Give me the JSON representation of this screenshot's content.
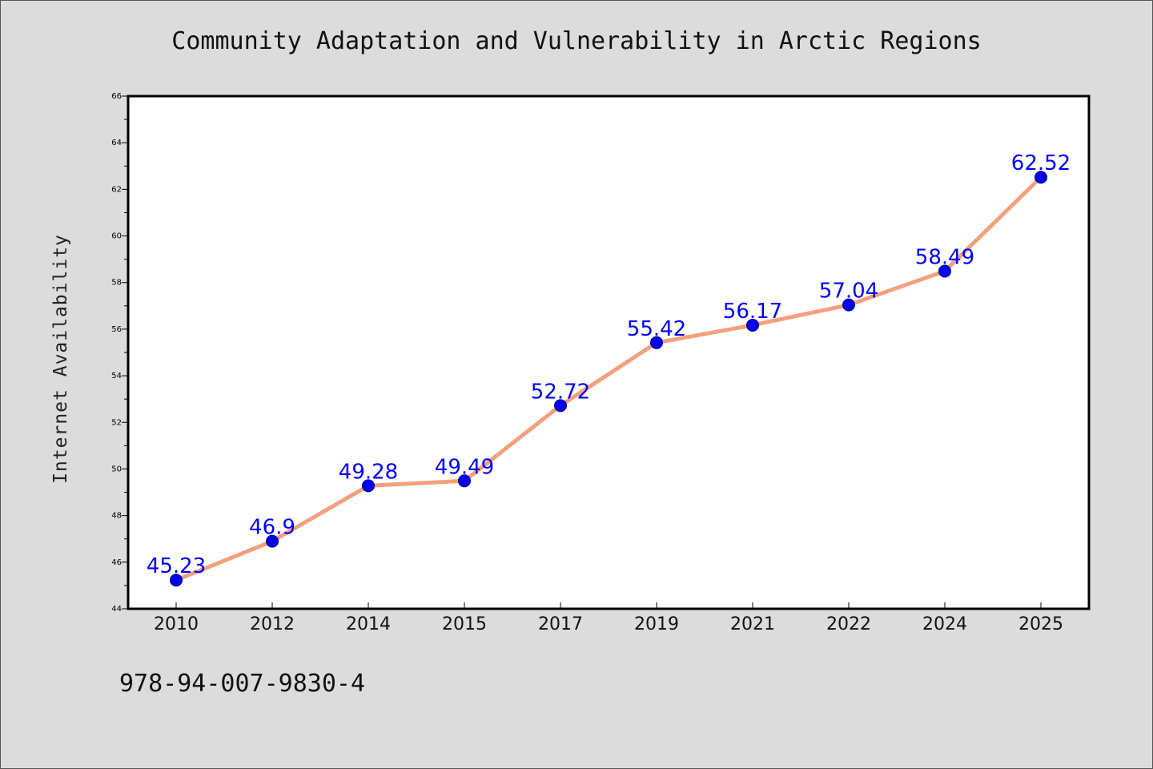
{
  "chart_data": {
    "type": "line",
    "title": "Community Adaptation and Vulnerability in Arctic Regions",
    "ylabel": "Internet Availability",
    "xlabel": "",
    "categories": [
      "2010",
      "2012",
      "2014",
      "2015",
      "2017",
      "2019",
      "2021",
      "2022",
      "2024",
      "2025"
    ],
    "values": [
      45.23,
      46.9,
      49.28,
      49.49,
      52.72,
      55.42,
      56.17,
      57.04,
      58.49,
      62.52
    ],
    "data_labels": [
      "45.23",
      "46.9",
      "49.28",
      "49.49",
      "52.72",
      "55.42",
      "56.17",
      "57.04",
      "58.49",
      "62.52"
    ],
    "ylim": [
      44,
      66
    ],
    "yticks": [
      "44",
      "46",
      "48",
      "50",
      "52",
      "54",
      "56",
      "58",
      "60",
      "62",
      "64",
      "66"
    ],
    "grid": false,
    "line_color": "#f4a07e",
    "marker_color": "#0000ee",
    "label_color": "#0000ff"
  },
  "footer": {
    "isbn": "978-94-007-9830-4"
  }
}
